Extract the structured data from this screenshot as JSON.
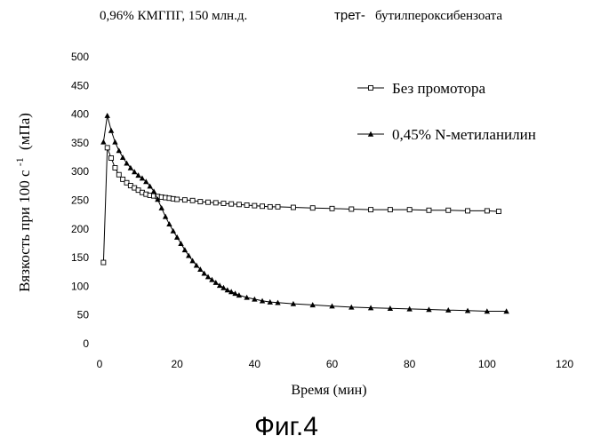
{
  "chart_data": {
    "type": "line",
    "title_part1": "0,96% КМГПГ, 150 млн.д.",
    "title_part2": "трет-",
    "title_part3": "бутилпероксибензоата",
    "xlabel": "Время (мин)",
    "ylabel_main": "Вязкость при 100 с",
    "ylabel_sup": "-1",
    "ylabel_unit": "(мПа)",
    "figure_caption": "Фиг.4",
    "xlim": [
      0,
      120
    ],
    "ylim": [
      0,
      500
    ],
    "x_ticks": [
      0,
      20,
      40,
      60,
      80,
      100,
      120
    ],
    "y_ticks": [
      0,
      50,
      100,
      150,
      200,
      250,
      300,
      350,
      400,
      450,
      500
    ],
    "grid": false,
    "legend_position": "top-right",
    "series": [
      {
        "name": "Без промотора",
        "marker": "open-square",
        "color": "#000000",
        "x": [
          1,
          2,
          3,
          4,
          5,
          6,
          7,
          8,
          9,
          10,
          11,
          12,
          13,
          14,
          15,
          16,
          17,
          18,
          19,
          20,
          22,
          24,
          26,
          28,
          30,
          32,
          34,
          36,
          38,
          40,
          42,
          44,
          46,
          50,
          55,
          60,
          65,
          70,
          75,
          80,
          85,
          90,
          95,
          100,
          103
        ],
        "y": [
          140,
          340,
          322,
          305,
          293,
          285,
          279,
          274,
          270,
          266,
          262,
          259,
          257,
          256,
          255,
          254,
          253,
          252,
          251,
          250,
          249,
          248,
          246,
          245,
          244,
          243,
          242,
          241,
          240,
          239,
          238,
          237,
          237,
          236,
          235,
          234,
          233,
          232,
          232,
          232,
          231,
          231,
          230,
          230,
          229
        ]
      },
      {
        "name": "0,45% N-метиланилин",
        "marker": "filled-triangle",
        "color": "#000000",
        "x": [
          1,
          2,
          3,
          4,
          5,
          6,
          7,
          8,
          9,
          10,
          11,
          12,
          13,
          14,
          15,
          16,
          17,
          18,
          19,
          20,
          21,
          22,
          23,
          24,
          25,
          26,
          27,
          28,
          29,
          30,
          31,
          32,
          33,
          34,
          35,
          36,
          38,
          40,
          42,
          44,
          46,
          50,
          55,
          60,
          65,
          70,
          75,
          80,
          85,
          90,
          95,
          100,
          105
        ],
        "y": [
          350,
          396,
          370,
          350,
          335,
          323,
          313,
          305,
          298,
          292,
          287,
          281,
          273,
          264,
          250,
          235,
          220,
          207,
          195,
          184,
          173,
          162,
          152,
          143,
          135,
          128,
          121,
          115,
          110,
          105,
          100,
          96,
          92,
          89,
          86,
          83,
          79,
          76,
          73,
          71,
          70,
          68,
          66,
          64,
          62,
          61,
          60,
          59,
          58,
          57,
          56,
          55,
          55
        ]
      }
    ]
  }
}
